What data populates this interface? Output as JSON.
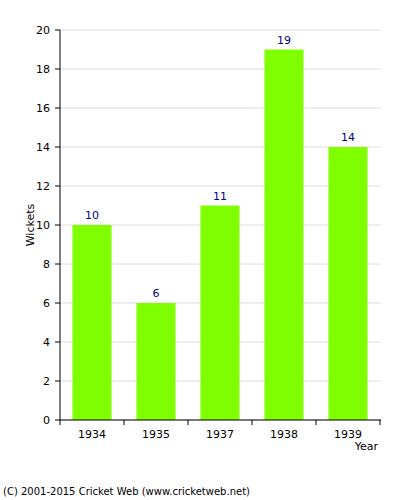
{
  "chart_data": {
    "type": "bar",
    "categories": [
      "1934",
      "1935",
      "1937",
      "1938",
      "1939"
    ],
    "values": [
      10,
      6,
      11,
      19,
      14
    ],
    "color": "#80ff00",
    "x_label": "Year",
    "y_label": "Wickets",
    "ylim": [
      0,
      20
    ],
    "yticks": [
      0,
      2,
      4,
      6,
      8,
      10,
      12,
      14,
      16,
      18,
      20
    ],
    "grid": true,
    "data_labels": true,
    "annotations": [
      "(C) 2001-2015 Cricket Web (www.cricketweb.net)"
    ]
  }
}
